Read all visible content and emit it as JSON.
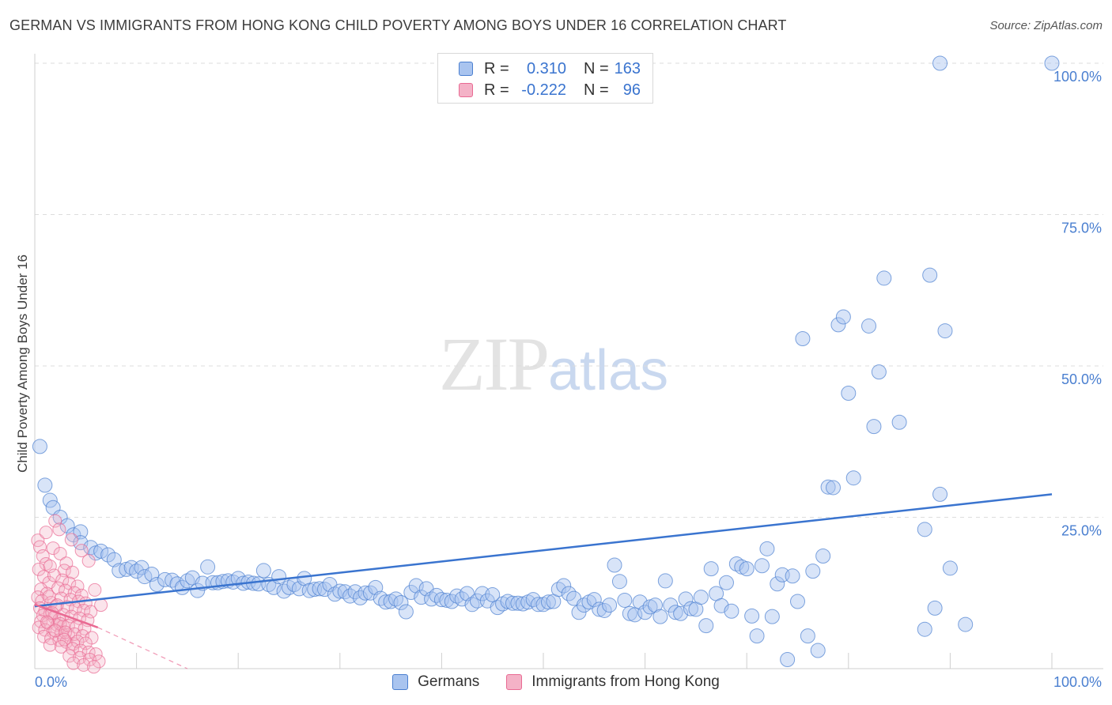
{
  "title": "GERMAN VS IMMIGRANTS FROM HONG KONG CHILD POVERTY AMONG BOYS UNDER 16 CORRELATION CHART",
  "source": "Source: ZipAtlas.com",
  "watermark": {
    "zip": "ZIP",
    "atlas": "atlas"
  },
  "colors": {
    "blue": "#4a7fd0",
    "blue_fill": "#a9c4ef",
    "pink": "#e96a93",
    "pink_fill": "#f4b2c7",
    "grid": "#dddddd"
  },
  "legend": {
    "rows": [
      {
        "r_label": "R =",
        "r_value": "0.310",
        "n_label": "N =",
        "n_value": "163"
      },
      {
        "r_label": "R =",
        "r_value": "-0.222",
        "n_label": "N =",
        "n_value": "96"
      }
    ]
  },
  "bottom_legend": {
    "germans": "Germans",
    "hongkong": "Immigrants from Hong Kong"
  },
  "chart_data": {
    "type": "scatter",
    "title": "GERMAN VS IMMIGRANTS FROM HONG KONG CHILD POVERTY AMONG BOYS UNDER 16 CORRELATION CHART",
    "xlabel": "",
    "ylabel": "Child Poverty Among Boys Under 16",
    "xlim": [
      0,
      100
    ],
    "ylim": [
      0,
      100
    ],
    "x_tick_labels": [
      "0.0%",
      "100.0%"
    ],
    "y_tick_labels": [
      "25.0%",
      "50.0%",
      "75.0%",
      "100.0%"
    ],
    "y_ticks": [
      25,
      50,
      75,
      100
    ],
    "grid": true,
    "legend_placement": "bottom",
    "series": [
      {
        "name": "Germans",
        "r": 0.31,
        "n": 163,
        "trend": {
          "x0": 0,
          "y0": 10.3,
          "x1": 100,
          "y1": 28.8
        },
        "points": [
          [
            0.5,
            36.7
          ],
          [
            1,
            30.3
          ],
          [
            1.5,
            27.8
          ],
          [
            1.8,
            26.6
          ],
          [
            2.5,
            25
          ],
          [
            3.2,
            23.6
          ],
          [
            3.8,
            22.1
          ],
          [
            4.5,
            22.6
          ],
          [
            4.5,
            20.8
          ],
          [
            5.5,
            20
          ],
          [
            6,
            19.1
          ],
          [
            6.5,
            19.4
          ],
          [
            7.2,
            18.8
          ],
          [
            7.8,
            18
          ],
          [
            8.3,
            16.2
          ],
          [
            9,
            16.4
          ],
          [
            9.5,
            16.7
          ],
          [
            10,
            16.1
          ],
          [
            10.5,
            16.7
          ],
          [
            10.8,
            15.2
          ],
          [
            11.5,
            15.6
          ],
          [
            12,
            13.9
          ],
          [
            12.8,
            14.7
          ],
          [
            13.5,
            14.6
          ],
          [
            14,
            14
          ],
          [
            14.5,
            13.4
          ],
          [
            15,
            14.5
          ],
          [
            15.5,
            15
          ],
          [
            16,
            12.9
          ],
          [
            16.5,
            14.1
          ],
          [
            17,
            16.8
          ],
          [
            17.5,
            14.2
          ],
          [
            18,
            14.2
          ],
          [
            18.5,
            14.4
          ],
          [
            19,
            14.5
          ],
          [
            19.5,
            14.3
          ],
          [
            20,
            14.9
          ],
          [
            20.5,
            14.1
          ],
          [
            21,
            14.3
          ],
          [
            21.5,
            14.1
          ],
          [
            22,
            14
          ],
          [
            22.5,
            16.2
          ],
          [
            23,
            13.9
          ],
          [
            23.5,
            13.4
          ],
          [
            24,
            15.2
          ],
          [
            24.5,
            12.8
          ],
          [
            25,
            13.4
          ],
          [
            25.5,
            13.9
          ],
          [
            26,
            13.2
          ],
          [
            26.5,
            14.9
          ],
          [
            27,
            12.9
          ],
          [
            27.5,
            13.1
          ],
          [
            28,
            13.2
          ],
          [
            28.5,
            13.1
          ],
          [
            29,
            13.9
          ],
          [
            29.5,
            12.3
          ],
          [
            30,
            12.8
          ],
          [
            30.5,
            12.7
          ],
          [
            31,
            12
          ],
          [
            31.5,
            12.7
          ],
          [
            32,
            11.7
          ],
          [
            32.5,
            12.5
          ],
          [
            33,
            12.5
          ],
          [
            33.5,
            13.4
          ],
          [
            34,
            11.6
          ],
          [
            34.5,
            11
          ],
          [
            35,
            11.1
          ],
          [
            35.5,
            11.5
          ],
          [
            36,
            10.9
          ],
          [
            36.5,
            9.4
          ],
          [
            37,
            12.6
          ],
          [
            37.5,
            13.7
          ],
          [
            38,
            11.8
          ],
          [
            38.5,
            13.2
          ],
          [
            39,
            11.5
          ],
          [
            39.5,
            12.1
          ],
          [
            40,
            11.4
          ],
          [
            40.5,
            11.3
          ],
          [
            41,
            11.1
          ],
          [
            41.5,
            12
          ],
          [
            42,
            11.5
          ],
          [
            42.5,
            12.4
          ],
          [
            43,
            10.6
          ],
          [
            43.5,
            11.2
          ],
          [
            44,
            12.4
          ],
          [
            44.5,
            11.2
          ],
          [
            45,
            12.2
          ],
          [
            45.5,
            10.1
          ],
          [
            46,
            10.7
          ],
          [
            46.5,
            11.1
          ],
          [
            47,
            10.8
          ],
          [
            47.5,
            10.8
          ],
          [
            48,
            10.7
          ],
          [
            48.5,
            11
          ],
          [
            49,
            11.4
          ],
          [
            49.5,
            10.6
          ],
          [
            50,
            10.6
          ],
          [
            50.5,
            11
          ],
          [
            51,
            11.1
          ],
          [
            51.5,
            13.1
          ],
          [
            52,
            13.7
          ],
          [
            52.5,
            12.4
          ],
          [
            53,
            11.6
          ],
          [
            53.5,
            9.3
          ],
          [
            54,
            10.5
          ],
          [
            54.5,
            11
          ],
          [
            55,
            11.4
          ],
          [
            55.5,
            9.8
          ],
          [
            56,
            9.6
          ],
          [
            56.5,
            10.5
          ],
          [
            57,
            17.1
          ],
          [
            57.5,
            14.4
          ],
          [
            58,
            11.3
          ],
          [
            58.5,
            9.1
          ],
          [
            59,
            8.9
          ],
          [
            59.5,
            11
          ],
          [
            60,
            9.3
          ],
          [
            60.5,
            10.2
          ],
          [
            61,
            10.5
          ],
          [
            61.5,
            8.6
          ],
          [
            62,
            14.5
          ],
          [
            62.5,
            10.5
          ],
          [
            63,
            9.3
          ],
          [
            63.5,
            9.1
          ],
          [
            64,
            11.5
          ],
          [
            64.5,
            9.9
          ],
          [
            65,
            9.8
          ],
          [
            65.5,
            11.8
          ],
          [
            66,
            7.1
          ],
          [
            66.5,
            16.5
          ],
          [
            67,
            12.4
          ],
          [
            67.5,
            10.4
          ],
          [
            68,
            14.2
          ],
          [
            68.5,
            9.5
          ],
          [
            69,
            17.3
          ],
          [
            69.5,
            16.8
          ],
          [
            70,
            16.5
          ],
          [
            70.5,
            8.7
          ],
          [
            71,
            5.4
          ],
          [
            71.5,
            17
          ],
          [
            72,
            19.8
          ],
          [
            72.5,
            8.6
          ],
          [
            73,
            14
          ],
          [
            73.5,
            15.5
          ],
          [
            74,
            1.5
          ],
          [
            74.5,
            15.3
          ],
          [
            75,
            11.1
          ],
          [
            75.5,
            54.5
          ],
          [
            76,
            5.4
          ],
          [
            76.5,
            16.1
          ],
          [
            77,
            3
          ],
          [
            77.5,
            18.6
          ],
          [
            78,
            30
          ],
          [
            78.5,
            29.9
          ],
          [
            79,
            56.8
          ],
          [
            79.5,
            58.1
          ],
          [
            80,
            45.5
          ],
          [
            80.5,
            31.5
          ],
          [
            82,
            56.6
          ],
          [
            82.5,
            40
          ],
          [
            83,
            49
          ],
          [
            83.5,
            64.5
          ],
          [
            85,
            40.7
          ],
          [
            87.5,
            23
          ],
          [
            87.5,
            6.5
          ],
          [
            88,
            65
          ],
          [
            88.5,
            10
          ],
          [
            89,
            28.8
          ],
          [
            89.5,
            55.8
          ],
          [
            90,
            16.6
          ],
          [
            91.5,
            7.3
          ],
          [
            89,
            100
          ],
          [
            100,
            100
          ]
        ]
      },
      {
        "name": "Immigrants from Hong Kong",
        "r": -0.222,
        "n": 96,
        "trend": {
          "x0": 0,
          "y0": 10.6,
          "x1": 6.2,
          "y1": 6.8
        },
        "trend_extended": {
          "x0": 6.2,
          "y0": 6.8,
          "x1": 15.0,
          "y1": 0
        },
        "points": [
          [
            0.3,
            21.2
          ],
          [
            0.5,
            20.1
          ],
          [
            0.8,
            18.6
          ],
          [
            1.1,
            17.3
          ],
          [
            0.4,
            16.4
          ],
          [
            0.9,
            15.2
          ],
          [
            1.4,
            14.2
          ],
          [
            0.6,
            13.1
          ],
          [
            1.2,
            12.4
          ],
          [
            0.3,
            11.8
          ],
          [
            0.7,
            11.2
          ],
          [
            1.6,
            10.9
          ],
          [
            2.1,
            10.3
          ],
          [
            0.5,
            10
          ],
          [
            1,
            9.5
          ],
          [
            1.5,
            9.1
          ],
          [
            0.8,
            8.8
          ],
          [
            1.9,
            8.5
          ],
          [
            2.4,
            8.1
          ],
          [
            0.6,
            7.8
          ],
          [
            1.3,
            7.5
          ],
          [
            2.2,
            7.2
          ],
          [
            2.8,
            7
          ],
          [
            0.4,
            6.8
          ],
          [
            1,
            6.4
          ],
          [
            1.8,
            6.1
          ],
          [
            2.6,
            5.9
          ],
          [
            3.3,
            5.6
          ],
          [
            0.9,
            5.3
          ],
          [
            1.6,
            5
          ],
          [
            2.4,
            4.7
          ],
          [
            3.1,
            4.4
          ],
          [
            3.8,
            4.1
          ],
          [
            2,
            24.4
          ],
          [
            1.8,
            19.9
          ],
          [
            2.5,
            19
          ],
          [
            3.1,
            17.4
          ],
          [
            1.5,
            16.9
          ],
          [
            2.9,
            16.2
          ],
          [
            3.7,
            15.9
          ],
          [
            1.9,
            15.4
          ],
          [
            2.7,
            14.6
          ],
          [
            3.4,
            14.1
          ],
          [
            4.2,
            13.6
          ],
          [
            2.3,
            13.3
          ],
          [
            3,
            12.9
          ],
          [
            3.9,
            12.5
          ],
          [
            4.6,
            12.1
          ],
          [
            1.4,
            11.9
          ],
          [
            2.6,
            11.6
          ],
          [
            3.5,
            11.4
          ],
          [
            4.3,
            11.1
          ],
          [
            5,
            10.8
          ],
          [
            2.2,
            10.5
          ],
          [
            3.2,
            10.2
          ],
          [
            4,
            9.9
          ],
          [
            4.8,
            9.6
          ],
          [
            5.5,
            9.4
          ],
          [
            1.7,
            9.2
          ],
          [
            2.8,
            8.9
          ],
          [
            3.6,
            8.6
          ],
          [
            4.4,
            8.3
          ],
          [
            5.2,
            8
          ],
          [
            1.2,
            7.7
          ],
          [
            2.5,
            7.4
          ],
          [
            3.3,
            7.1
          ],
          [
            4.1,
            6.9
          ],
          [
            4.9,
            6.6
          ],
          [
            2,
            6.3
          ],
          [
            3,
            6
          ],
          [
            3.9,
            5.7
          ],
          [
            4.7,
            5.4
          ],
          [
            5.6,
            5.1
          ],
          [
            2.9,
            4.8
          ],
          [
            4.2,
            4.5
          ],
          [
            5,
            4.2
          ],
          [
            1.5,
            3.9
          ],
          [
            2.6,
            3.6
          ],
          [
            3.7,
            3.3
          ],
          [
            4.5,
            3
          ],
          [
            5.3,
            2.7
          ],
          [
            6,
            2.4
          ],
          [
            3.4,
            2.1
          ],
          [
            4.4,
            1.8
          ],
          [
            5.4,
            1.5
          ],
          [
            6.3,
            1.2
          ],
          [
            3.8,
            0.9
          ],
          [
            4.8,
            0.6
          ],
          [
            5.8,
            0.3
          ],
          [
            6.5,
            10.5
          ],
          [
            5.9,
            13
          ],
          [
            4.6,
            19.5
          ],
          [
            3.6,
            21.3
          ],
          [
            2.4,
            23
          ],
          [
            1.1,
            22.5
          ],
          [
            5.3,
            17.8
          ]
        ]
      }
    ]
  }
}
